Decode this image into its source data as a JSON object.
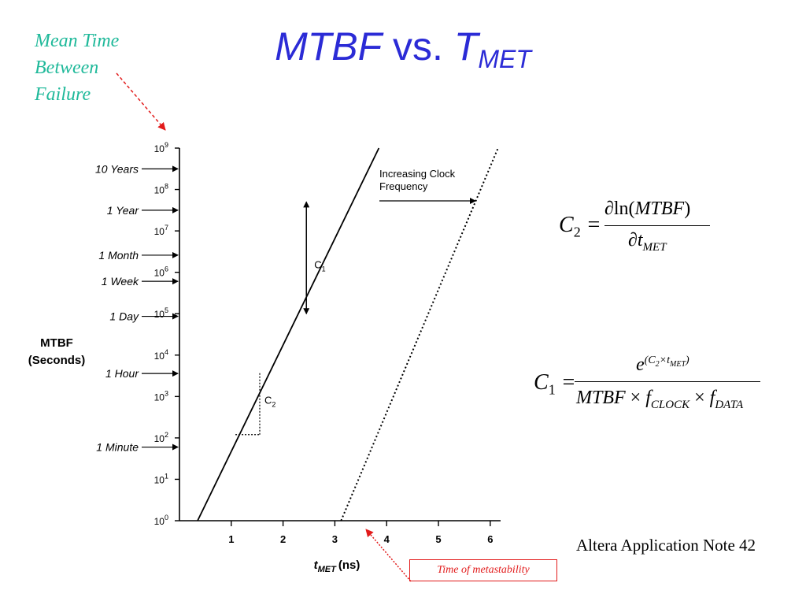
{
  "slide": {
    "title_main": "MTBF",
    "title_vs": " vs. ",
    "title_t": "T",
    "title_sub": "MET",
    "side_label": [
      "Mean Time",
      "Between",
      "Failure"
    ],
    "source": "Altera Application Note 42",
    "meta_box": "Time of metastability"
  },
  "chart_data": {
    "type": "line",
    "title": "",
    "xlabel_main": "t",
    "xlabel_sub": "MET",
    "xlabel_unit": "(ns)",
    "ylabel_lines": [
      "MTBF",
      "(Seconds)"
    ],
    "y_scale": "log",
    "xlim": [
      0,
      6.2
    ],
    "ylim": [
      1,
      1000000000
    ],
    "x_ticks": [
      1,
      2,
      3,
      4,
      5,
      6
    ],
    "x_tick_labels": [
      "1",
      "2",
      "3",
      "4",
      "5",
      "6"
    ],
    "y_tick_exponents": [
      0,
      1,
      2,
      3,
      4,
      5,
      6,
      7,
      8,
      9
    ],
    "y_tick_base": "10",
    "time_markers": [
      {
        "label": "10 Years",
        "seconds": 315360000
      },
      {
        "label": "1 Year",
        "seconds": 31536000
      },
      {
        "label": "1 Month",
        "seconds": 2592000
      },
      {
        "label": "1 Week",
        "seconds": 604800
      },
      {
        "label": "1 Day",
        "seconds": 86400
      },
      {
        "label": "1 Hour",
        "seconds": 3600
      },
      {
        "label": "1 Minute",
        "seconds": 60
      }
    ],
    "series": [
      {
        "style": "solid",
        "points": [
          [
            0.35,
            1
          ],
          [
            3.85,
            1000000000
          ]
        ]
      },
      {
        "style": "dotted",
        "points": [
          [
            3.12,
            1
          ],
          [
            6.15,
            1000000000
          ]
        ]
      }
    ],
    "annotations": {
      "increasing_clock": [
        "Increasing Clock",
        "Frequency"
      ],
      "c1_label": "C",
      "c1_sub": "1",
      "c1_arrow_x": 2.45,
      "c1_arrow_range": [
        100000,
        50000000
      ],
      "c2_label": "C",
      "c2_sub": "2",
      "c2_triangle": {
        "x0": 1.08,
        "x1": 1.55,
        "y0": 120,
        "y1": 4000
      }
    },
    "grid": false,
    "legend": "none"
  },
  "equations": {
    "c2": {
      "lhs": "C",
      "lhs_sub": "2",
      "num_fn": "ln(",
      "num_var": "MTBF",
      "num_close": ")",
      "den_var": "t",
      "den_sub": "MET",
      "symbol": "∂"
    },
    "c1": {
      "lhs": "C",
      "lhs_sub": "1",
      "num_base": "e",
      "num_exp": "(C",
      "num_exp_sub": "2",
      "num_exp_mid": "×t",
      "num_exp_sub2": "MET",
      "num_exp_close": ")",
      "den_a": "MTBF",
      "den_x": " × ",
      "den_b": "f",
      "den_b_sub": "CLOCK",
      "den_c": "f",
      "den_c_sub": "DATA"
    }
  },
  "colors": {
    "title": "#2b2bd6",
    "side_label": "#1fb99a",
    "red": "#e21b1b",
    "ink": "#000000"
  }
}
